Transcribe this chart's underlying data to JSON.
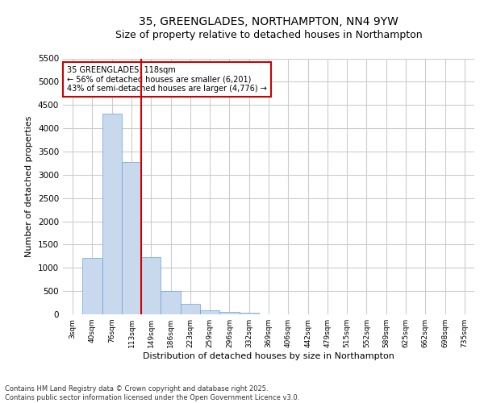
{
  "title_line1": "35, GREENGLADES, NORTHAMPTON, NN4 9YW",
  "title_line2": "Size of property relative to detached houses in Northampton",
  "xlabel": "Distribution of detached houses by size in Northampton",
  "ylabel": "Number of detached properties",
  "annotation_title": "35 GREENGLADES: 118sqm",
  "annotation_line2": "← 56% of detached houses are smaller (6,201)",
  "annotation_line3": "43% of semi-detached houses are larger (4,776) →",
  "footer_line1": "Contains HM Land Registry data © Crown copyright and database right 2025.",
  "footer_line2": "Contains public sector information licensed under the Open Government Licence v3.0.",
  "bar_color": "#c8d9ed",
  "bar_edge_color": "#6a9fd8",
  "vline_color": "#cc0000",
  "annotation_box_color": "#ffffff",
  "annotation_box_edge": "#cc0000",
  "categories": [
    "3sqm",
    "40sqm",
    "76sqm",
    "113sqm",
    "149sqm",
    "186sqm",
    "223sqm",
    "259sqm",
    "296sqm",
    "332sqm",
    "369sqm",
    "406sqm",
    "442sqm",
    "479sqm",
    "515sqm",
    "552sqm",
    "589sqm",
    "625sqm",
    "662sqm",
    "698sqm",
    "735sqm"
  ],
  "values": [
    0,
    1210,
    4320,
    3270,
    1230,
    500,
    230,
    95,
    60,
    35,
    0,
    0,
    0,
    0,
    0,
    0,
    0,
    0,
    0,
    0,
    0
  ],
  "ylim": [
    0,
    5500
  ],
  "yticks": [
    0,
    500,
    1000,
    1500,
    2000,
    2500,
    3000,
    3500,
    4000,
    4500,
    5000,
    5500
  ],
  "bg_color": "#ffffff",
  "grid_color": "#cccccc",
  "title_fontsize": 10,
  "subtitle_fontsize": 9,
  "vline_index": 3.5
}
